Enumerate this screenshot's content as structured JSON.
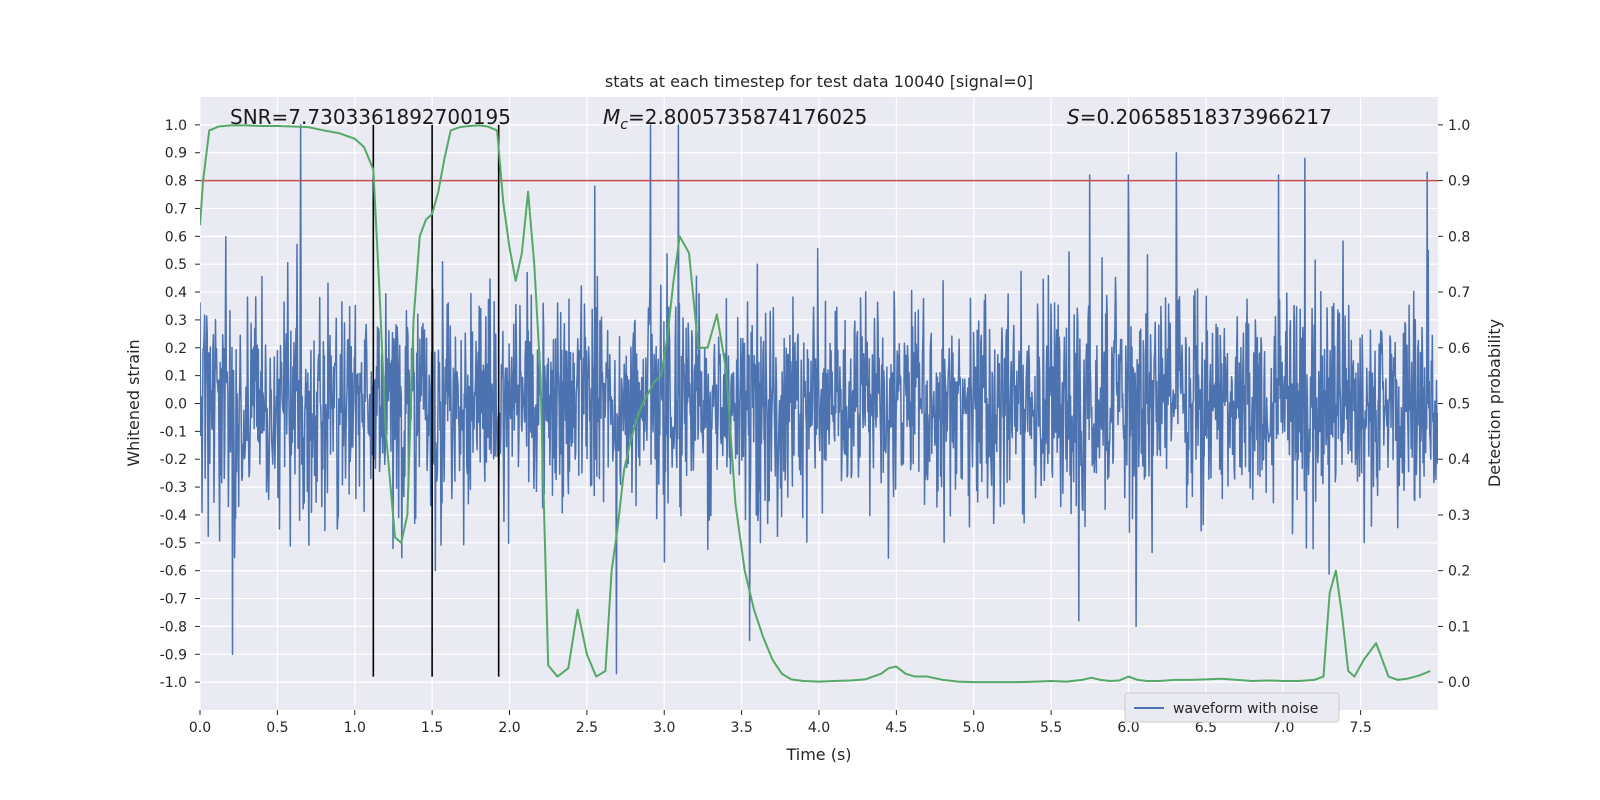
{
  "chart_data": {
    "type": "line",
    "title": "stats at each timestep for test data 10040 [signal=0]",
    "xlabel": "Time (s)",
    "ylabel": "Whitened strain",
    "ylabel_right": "Detection probability",
    "xlim": [
      0.0,
      8.0
    ],
    "ylim": [
      -1.1,
      1.1
    ],
    "ylim_right": [
      -0.05,
      1.05
    ],
    "x_ticks": [
      0.0,
      0.5,
      1.0,
      1.5,
      2.0,
      2.5,
      3.0,
      3.5,
      4.0,
      4.5,
      5.0,
      5.5,
      6.0,
      6.5,
      7.0,
      7.5
    ],
    "x_tick_labels": [
      "0.0",
      "0.5",
      "1.0",
      "1.5",
      "2.0",
      "2.5",
      "3.0",
      "3.5",
      "4.0",
      "4.5",
      "5.0",
      "5.5",
      "6.0",
      "6.5",
      "7.0",
      "7.5"
    ],
    "y_ticks": [
      1.0,
      0.9,
      0.8,
      0.7,
      0.6,
      0.5,
      0.4,
      0.3,
      0.2,
      0.1,
      0.0,
      -0.1,
      -0.2,
      -0.3,
      -0.4,
      -0.5,
      -0.6,
      -0.7,
      -0.8,
      -0.9,
      -1.0
    ],
    "y_tick_labels": [
      "1.0",
      "0.9",
      "0.8",
      "0.7",
      "0.6",
      "0.5",
      "0.4",
      "0.3",
      "0.2",
      "0.1",
      "0.0",
      "-0.1",
      "-0.2",
      "-0.3",
      "-0.4",
      "-0.5",
      "-0.6",
      "-0.7",
      "-0.8",
      "-0.9",
      "-1.0"
    ],
    "y_right_ticks": [
      1.0,
      0.9,
      0.8,
      0.7,
      0.6,
      0.5,
      0.4,
      0.3,
      0.2,
      0.1,
      0.0
    ],
    "y_right_tick_labels": [
      "1.0",
      "0.9",
      "0.8",
      "0.7",
      "0.6",
      "0.5",
      "0.4",
      "0.3",
      "0.2",
      "0.1",
      "0.0"
    ],
    "annotations": {
      "snr": "SNR=7.7303361892700195",
      "mc_symbol": "M",
      "mc_sub": "c",
      "mc_value": "=2.8005735874176025",
      "s_symbol": "S",
      "s_value": "=0.20658518373966217"
    },
    "threshold": 0.9,
    "threshold_color": "#c44e52",
    "vertical_lines": [
      1.12,
      1.5,
      1.93
    ],
    "waveform": {
      "name": "waveform with noise",
      "color": "#4c72b0",
      "samples": 2400,
      "seed": 10040,
      "noise_sigma": 0.19,
      "spikes": [
        {
          "t": 0.65,
          "v": 1.0
        },
        {
          "t": 0.21,
          "v": -0.9
        },
        {
          "t": 2.91,
          "v": 1.0
        },
        {
          "t": 3.09,
          "v": 1.0
        },
        {
          "t": 2.69,
          "v": -0.97
        },
        {
          "t": 6.31,
          "v": 0.9
        },
        {
          "t": 7.14,
          "v": 0.88
        },
        {
          "t": 7.93,
          "v": 0.83
        },
        {
          "t": 1.52,
          "v": -0.6
        },
        {
          "t": 2.55,
          "v": 0.78
        },
        {
          "t": 3.55,
          "v": -0.85
        },
        {
          "t": 6.05,
          "v": -0.8
        },
        {
          "t": 5.68,
          "v": -0.78
        },
        {
          "t": 6.97,
          "v": 0.82
        },
        {
          "t": 5.75,
          "v": 0.82
        },
        {
          "t": 6.0,
          "v": 0.82
        }
      ]
    },
    "detection": {
      "name": "Detection probability",
      "color": "#55a868",
      "x": [
        0.0,
        0.02,
        0.06,
        0.12,
        0.2,
        0.3,
        0.4,
        0.5,
        0.6,
        0.7,
        0.8,
        0.9,
        1.0,
        1.06,
        1.12,
        1.16,
        1.2,
        1.26,
        1.3,
        1.34,
        1.38,
        1.42,
        1.46,
        1.5,
        1.54,
        1.58,
        1.62,
        1.68,
        1.74,
        1.8,
        1.86,
        1.92,
        1.96,
        2.0,
        2.04,
        2.08,
        2.12,
        2.16,
        2.2,
        2.25,
        2.31,
        2.38,
        2.44,
        2.5,
        2.56,
        2.62,
        2.66,
        2.7,
        2.74,
        2.78,
        2.82,
        2.86,
        2.9,
        2.94,
        2.98,
        3.02,
        3.06,
        3.1,
        3.16,
        3.22,
        3.28,
        3.34,
        3.4,
        3.46,
        3.52,
        3.58,
        3.64,
        3.7,
        3.76,
        3.82,
        3.9,
        4.0,
        4.1,
        4.2,
        4.3,
        4.4,
        4.45,
        4.5,
        4.56,
        4.62,
        4.7,
        4.8,
        4.9,
        5.0,
        5.1,
        5.2,
        5.3,
        5.4,
        5.5,
        5.6,
        5.7,
        5.76,
        5.82,
        5.88,
        5.94,
        6.0,
        6.06,
        6.12,
        6.2,
        6.3,
        6.4,
        6.5,
        6.6,
        6.7,
        6.8,
        6.9,
        7.0,
        7.1,
        7.2,
        7.26,
        7.3,
        7.34,
        7.38,
        7.42,
        7.46,
        7.52,
        7.6,
        7.68,
        7.74,
        7.8,
        7.88,
        7.95
      ],
      "y": [
        0.82,
        0.9,
        0.99,
        0.997,
        0.999,
        0.999,
        0.998,
        0.998,
        0.997,
        0.996,
        0.99,
        0.985,
        0.975,
        0.96,
        0.92,
        0.7,
        0.45,
        0.26,
        0.25,
        0.3,
        0.65,
        0.8,
        0.83,
        0.84,
        0.88,
        0.94,
        0.99,
        0.996,
        0.998,
        0.999,
        0.997,
        0.99,
        0.86,
        0.78,
        0.72,
        0.77,
        0.88,
        0.75,
        0.55,
        0.03,
        0.01,
        0.025,
        0.13,
        0.05,
        0.01,
        0.02,
        0.2,
        0.28,
        0.38,
        0.43,
        0.47,
        0.5,
        0.52,
        0.54,
        0.55,
        0.62,
        0.72,
        0.8,
        0.77,
        0.6,
        0.6,
        0.66,
        0.56,
        0.32,
        0.2,
        0.13,
        0.08,
        0.04,
        0.015,
        0.005,
        0.002,
        0.001,
        0.002,
        0.003,
        0.005,
        0.015,
        0.025,
        0.028,
        0.015,
        0.01,
        0.01,
        0.004,
        0.001,
        0.0,
        0.0,
        0.0,
        0.0,
        0.001,
        0.002,
        0.001,
        0.004,
        0.008,
        0.004,
        0.002,
        0.003,
        0.01,
        0.004,
        0.002,
        0.002,
        0.004,
        0.004,
        0.005,
        0.006,
        0.004,
        0.002,
        0.003,
        0.002,
        0.002,
        0.004,
        0.01,
        0.16,
        0.2,
        0.12,
        0.02,
        0.01,
        0.04,
        0.07,
        0.01,
        0.004,
        0.006,
        0.012,
        0.02
      ]
    },
    "legend": {
      "label": "waveform with noise",
      "placement": "lower-right"
    },
    "colors": {
      "plot_bg": "#eaeaf2",
      "grid": "#ffffff",
      "text": "#262626",
      "vline": "#000000"
    }
  }
}
